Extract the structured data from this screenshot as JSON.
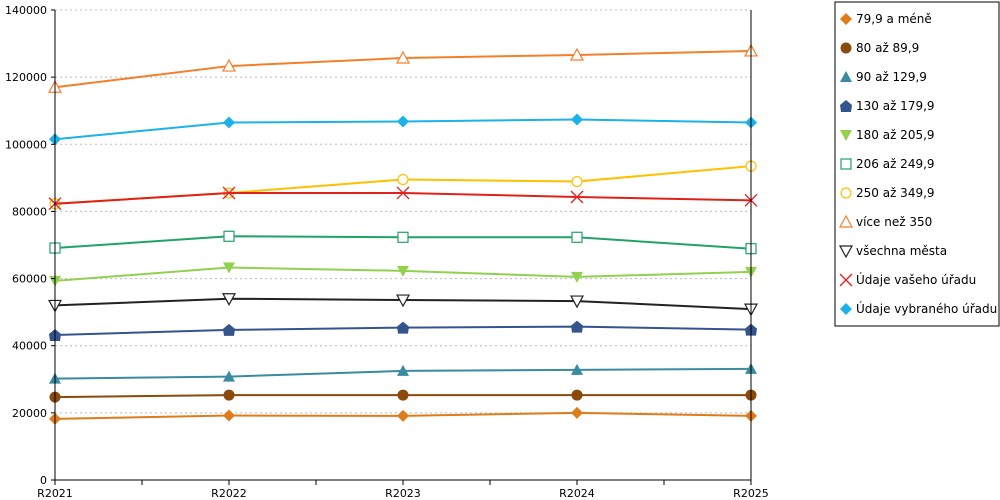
{
  "chart_data": {
    "type": "line",
    "categories": [
      "R2021",
      "R2022",
      "R2023",
      "R2024",
      "R2025"
    ],
    "ylim": [
      0,
      140000
    ],
    "yticks": [
      0,
      20000,
      40000,
      60000,
      80000,
      100000,
      120000,
      140000
    ],
    "ytick_labels": [
      "0",
      "20000",
      "40000",
      "60000",
      "80000",
      "100000",
      "120000",
      "140000"
    ],
    "grid": "horizontal dotted",
    "legend_position": "right",
    "series": [
      {
        "name": "79,9 a méně",
        "color": "#e07b1a",
        "marker": "diamond-filled",
        "values": [
          18200,
          19200,
          19100,
          20000,
          19100
        ]
      },
      {
        "name": "80 až 89,9",
        "color": "#8b4a0c",
        "marker": "circle-filled",
        "values": [
          24700,
          25300,
          25300,
          25300,
          25300
        ]
      },
      {
        "name": "90 až 129,9",
        "color": "#3a8aa0",
        "marker": "triangle-up-filled",
        "values": [
          30200,
          30800,
          32500,
          32800,
          33100
        ]
      },
      {
        "name": "130 až 179,9",
        "color": "#34558c",
        "marker": "pentagon-filled",
        "values": [
          43200,
          44700,
          45400,
          45700,
          44800
        ]
      },
      {
        "name": "180 až 205,9",
        "color": "#92d050",
        "marker": "triangle-down-filled",
        "values": [
          59300,
          63300,
          62300,
          60500,
          62000
        ]
      },
      {
        "name": "206 až 249,9",
        "color": "#21a366",
        "marker": "square-open",
        "values": [
          69100,
          72600,
          72300,
          72300,
          68900
        ]
      },
      {
        "name": "250 až 349,9",
        "color": "#ffc000",
        "marker": "circle-open",
        "values": [
          82300,
          85500,
          89500,
          88900,
          93500
        ]
      },
      {
        "name": "více než 350",
        "color": "#f47f2a",
        "marker": "triangle-up-open",
        "values": [
          117000,
          123300,
          125700,
          126600,
          127800
        ]
      },
      {
        "name": "všechna města",
        "color": "#222222",
        "marker": "triangle-down-open",
        "values": [
          52000,
          54000,
          53600,
          53300,
          50900
        ]
      },
      {
        "name": "Údaje vašeho úřadu",
        "color": "#e0201a",
        "marker": "x",
        "values": [
          82300,
          85500,
          85500,
          84300,
          83300
        ]
      },
      {
        "name": "Údaje vybraného úřadu",
        "color": "#1ab2e8",
        "marker": "diamond-filled",
        "values": [
          101500,
          106500,
          106800,
          107400,
          106500
        ]
      }
    ]
  }
}
